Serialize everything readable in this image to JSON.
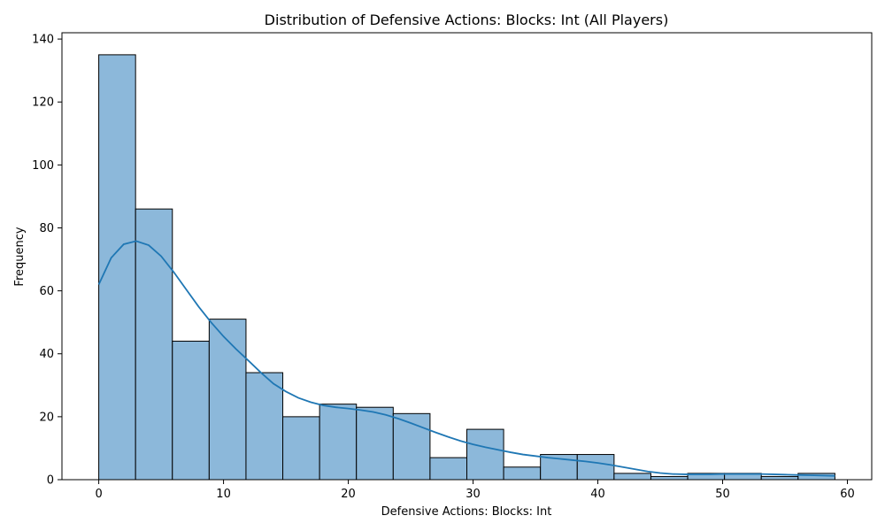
{
  "chart_data": {
    "type": "histogram",
    "title": "Distribution of Defensive Actions: Blocks: Int (All Players)",
    "xlabel": "Defensive Actions: Blocks: Int",
    "ylabel": "Frequency",
    "xlim": [
      -2.95,
      61.95
    ],
    "ylim": [
      0,
      142
    ],
    "x_ticks": [
      0,
      10,
      20,
      30,
      40,
      50,
      60
    ],
    "y_ticks": [
      0,
      20,
      40,
      60,
      80,
      100,
      120,
      140
    ],
    "bin_edges": [
      0,
      2.95,
      5.9,
      8.85,
      11.8,
      14.75,
      17.7,
      20.65,
      23.6,
      26.55,
      29.5,
      32.45,
      35.4,
      38.35,
      41.3,
      44.25,
      47.2,
      50.15,
      53.1,
      56.05,
      59
    ],
    "counts": [
      135,
      86,
      44,
      51,
      34,
      20,
      24,
      23,
      21,
      7,
      16,
      4,
      8,
      8,
      2,
      1,
      2,
      2,
      1,
      2
    ],
    "kde": {
      "x": [
        0,
        1,
        2,
        3,
        4,
        5,
        6,
        7,
        8,
        9,
        10,
        11,
        12,
        13,
        14,
        15,
        16,
        17,
        18,
        19,
        20,
        21,
        22,
        23,
        24,
        25,
        26,
        27,
        28,
        29,
        30,
        31,
        32,
        33,
        34,
        35,
        36,
        37,
        38,
        39,
        40,
        41,
        42,
        43,
        44,
        45,
        46,
        47,
        48,
        49,
        50,
        51,
        52,
        53,
        54,
        55,
        56,
        57,
        58,
        59
      ],
      "y": [
        62,
        70.5,
        74.8,
        75.8,
        74.5,
        71,
        66,
        60.5,
        55,
        50,
        45.5,
        41.5,
        37.8,
        34,
        30.5,
        28,
        26,
        24.6,
        23.6,
        23,
        22.6,
        22.1,
        21.5,
        20.6,
        19.4,
        18,
        16.5,
        15,
        13.6,
        12.3,
        11.2,
        10.3,
        9.5,
        8.7,
        8,
        7.5,
        7,
        6.6,
        6.2,
        5.8,
        5.3,
        4.7,
        4,
        3.3,
        2.6,
        2.1,
        1.8,
        1.7,
        1.7,
        1.7,
        1.8,
        1.8,
        1.8,
        1.8,
        1.7,
        1.6,
        1.5,
        1.4,
        1.3,
        1.2
      ]
    },
    "bar_color": "#8cb8da",
    "bar_edge_color": "#000000",
    "line_color": "#1f77b4",
    "grid": false
  }
}
